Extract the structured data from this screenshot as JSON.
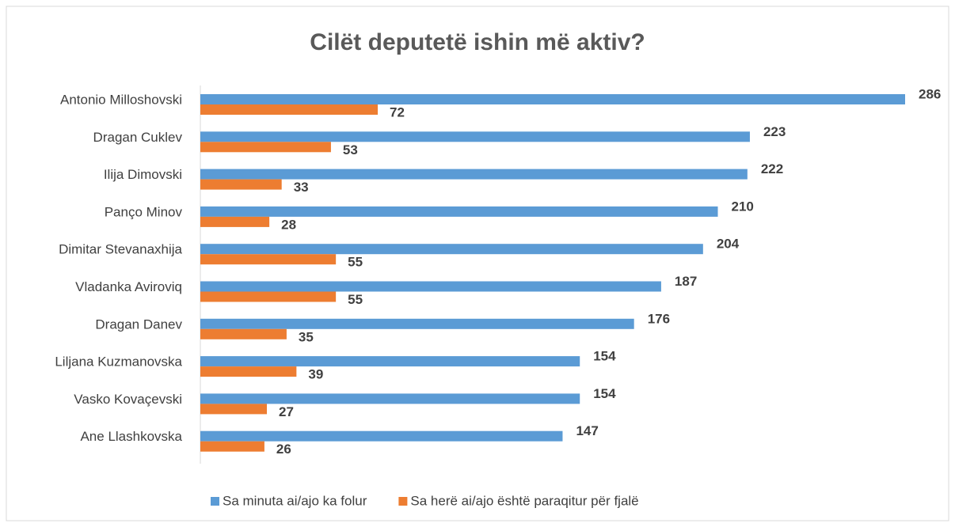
{
  "chart_data": {
    "type": "bar",
    "orientation": "horizontal",
    "title": "Cilët deputetë ishin më aktiv?",
    "categories": [
      "Antonio Milloshovski",
      "Dragan Cuklev",
      "Ilija Dimovski",
      "Panço Minov",
      "Dimitar Stevanaxhija",
      "Vladanka Aviroviq",
      "Dragan Danev",
      "Liljana Kuzmanovska",
      "Vasko Kovaçevski",
      "Ane Llashkovska"
    ],
    "series": [
      {
        "name": "Sa minuta ai/ajo ka folur",
        "color": "#5b9bd5",
        "values": [
          286,
          223,
          222,
          210,
          204,
          187,
          176,
          154,
          154,
          147
        ]
      },
      {
        "name": "Sa herë ai/ajo është paraqitur për fjalë",
        "color": "#ed7d31",
        "values": [
          72,
          53,
          33,
          28,
          55,
          55,
          35,
          39,
          27,
          26
        ]
      }
    ],
    "legend": "bottom",
    "grid": false
  }
}
